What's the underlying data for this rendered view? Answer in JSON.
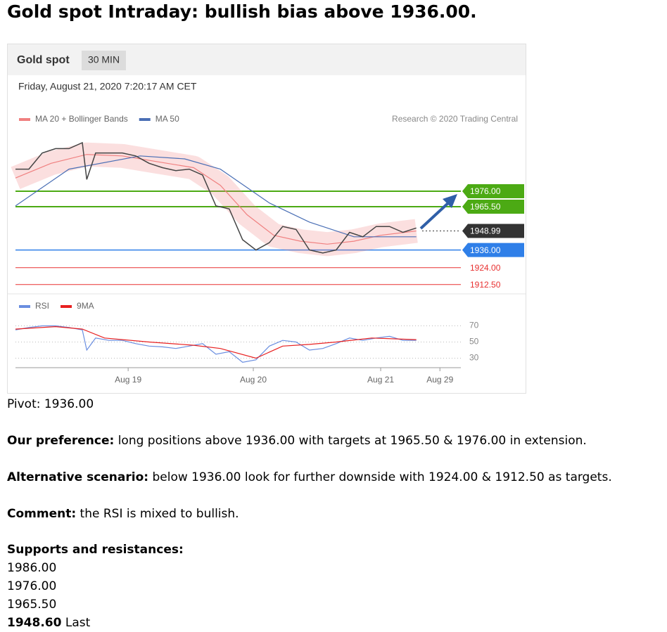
{
  "header": {
    "title": "Gold spot Intraday: bullish bias above 1936.00."
  },
  "chart_data": {
    "type": "line",
    "title": "Gold spot",
    "timeframe": "30 MIN",
    "subtitle": "Friday, August 21, 2020 7:20:17 AM CET",
    "credit": "Research © 2020 Trading Central",
    "xlim": [
      0,
      100
    ],
    "xticks": [
      {
        "value": 25.3,
        "label": "Aug 19"
      },
      {
        "value": 53.4,
        "label": "Aug 20"
      },
      {
        "value": 82,
        "label": "Aug 21"
      },
      {
        "value": 95.3,
        "label": "Aug 29"
      }
    ],
    "ylim": [
      1910,
      2020
    ],
    "price": {
      "x": [
        0,
        3,
        6,
        9,
        12,
        15,
        16,
        18,
        21,
        24,
        27,
        30,
        33,
        36,
        39,
        42,
        45,
        48,
        51,
        54,
        57,
        60,
        63,
        66,
        69,
        72,
        75,
        78,
        81,
        84,
        87,
        90
      ],
      "values": [
        1991,
        1991,
        2002,
        2005,
        2005,
        2009,
        1984,
        2002,
        2002,
        2002,
        2000,
        1995,
        1992,
        1990,
        1991,
        1987,
        1966,
        1964,
        1943,
        1936,
        1941,
        1952,
        1950,
        1936,
        1934,
        1936,
        1948,
        1945,
        1952,
        1952,
        1948,
        1951
      ],
      "color": "#444444"
    },
    "series": [
      {
        "name": "MA 20 + Bollinger Bands",
        "color": "#f08080",
        "x": [
          0,
          8,
          16,
          24,
          32,
          40,
          46,
          52,
          58,
          64,
          70,
          76,
          82,
          90
        ],
        "values": [
          1985,
          1995,
          2001,
          2000,
          1996,
          1992,
          1980,
          1960,
          1946,
          1942,
          1940,
          1942,
          1946,
          1949
        ]
      },
      {
        "name": "MA 50",
        "color": "#4a6fb5",
        "x": [
          0,
          12,
          28,
          38,
          46,
          57,
          66,
          76,
          85,
          90
        ],
        "values": [
          1966,
          1991,
          2000,
          1998,
          1991,
          1968,
          1955,
          1945,
          1945,
          1945
        ]
      }
    ],
    "levels": [
      {
        "value": 1976,
        "label": "1976.00",
        "color": "#4caa14",
        "boxed": true,
        "width": 2,
        "dotted": false
      },
      {
        "value": 1965.5,
        "label": "1965.50",
        "color": "#4caa14",
        "boxed": true,
        "width": 2,
        "dotted": false
      },
      {
        "value": 1948.99,
        "label": "1948.99",
        "color": "#333333",
        "boxed": true,
        "width": 1,
        "dotted": true
      },
      {
        "value": 1936,
        "label": "1936.00",
        "color": "#2f7fe8",
        "boxed": true,
        "width": 1.5,
        "dotted": false
      },
      {
        "value": 1924,
        "label": "1924.00",
        "color": "#e83030",
        "boxed": false,
        "width": 1,
        "dotted": false
      },
      {
        "value": 1912.5,
        "label": "1912.50",
        "color": "#e83030",
        "boxed": false,
        "width": 1,
        "dotted": false
      }
    ],
    "rsi": {
      "ylim": [
        20,
        80
      ],
      "yticks": [
        30,
        50,
        70
      ],
      "series": [
        {
          "name": "RSI",
          "color": "#6a8ee0",
          "x": [
            0,
            3,
            6,
            9,
            12,
            15,
            16,
            18,
            21,
            24,
            27,
            30,
            33,
            36,
            39,
            42,
            45,
            48,
            51,
            54,
            57,
            60,
            63,
            66,
            69,
            72,
            75,
            78,
            81,
            84,
            87,
            90
          ],
          "values": [
            65,
            68,
            70,
            70,
            68,
            65,
            40,
            55,
            52,
            52,
            48,
            45,
            44,
            42,
            45,
            48,
            35,
            38,
            25,
            28,
            45,
            52,
            50,
            40,
            42,
            48,
            55,
            52,
            55,
            57,
            52,
            52
          ]
        },
        {
          "name": "9MA",
          "color": "#e82020",
          "x": [
            0,
            9,
            15,
            20,
            30,
            40,
            46,
            54,
            60,
            66,
            72,
            80,
            90
          ],
          "values": [
            66,
            69,
            66,
            55,
            50,
            46,
            42,
            30,
            45,
            47,
            50,
            55,
            53
          ]
        }
      ]
    }
  },
  "body": {
    "pivot": "Pivot: 1936.00",
    "paragraphs": [
      {
        "label": "Our preference:",
        "text": "long positions above 1936.00 with targets at 1965.50 & 1976.00 in extension."
      },
      {
        "label": "Alternative scenario:",
        "text": "below 1936.00 look for further downside with 1924.00 & 1912.50 as targets."
      },
      {
        "label": "Comment:",
        "text": "the RSI is mixed to bullish."
      }
    ],
    "sr_title": "Supports and resistances:",
    "sr": [
      "1986.00",
      "1976.00",
      "1965.50"
    ],
    "last": {
      "value": "1948.60",
      "label": "Last"
    }
  }
}
